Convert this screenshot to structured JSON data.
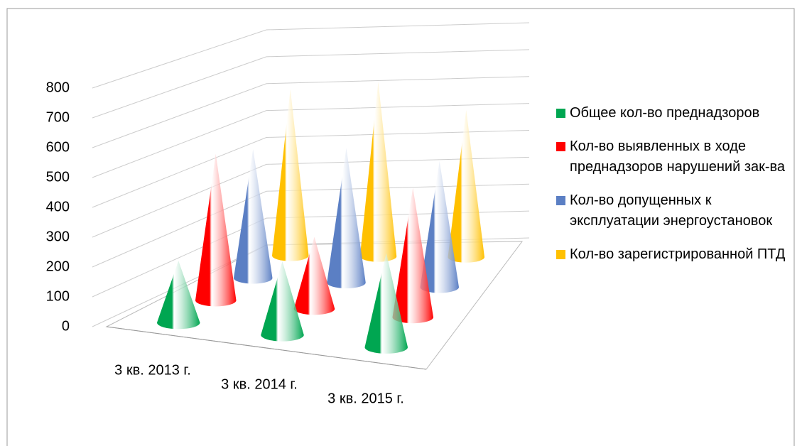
{
  "chart_data": {
    "type": "cone3d",
    "categories": [
      "3 кв. 2013 г.",
      "3 кв. 2014 г.",
      "3 кв. 2015 г."
    ],
    "series": [
      {
        "name": "Общее кол-во преднадзоров",
        "color": "#00a651",
        "values": [
          210,
          250,
          320
        ]
      },
      {
        "name": "Кол-во выявленных в ходе преднадзоров нарушений зак-ва",
        "color": "#ff0000",
        "values": [
          510,
          250,
          450
        ]
      },
      {
        "name": "Кол-во допущенных к эксплуатации энергоустановок",
        "color": "#5b7fc4",
        "values": [
          460,
          480,
          450
        ]
      },
      {
        "name": "Кол-во зарегистрированной ПТД",
        "color": "#ffc000",
        "values": [
          610,
          640,
          540
        ]
      }
    ],
    "ylim": [
      0,
      800
    ],
    "yticks": [
      0,
      100,
      200,
      300,
      400,
      500,
      600,
      700,
      800
    ],
    "grid": true,
    "legend": "right"
  }
}
